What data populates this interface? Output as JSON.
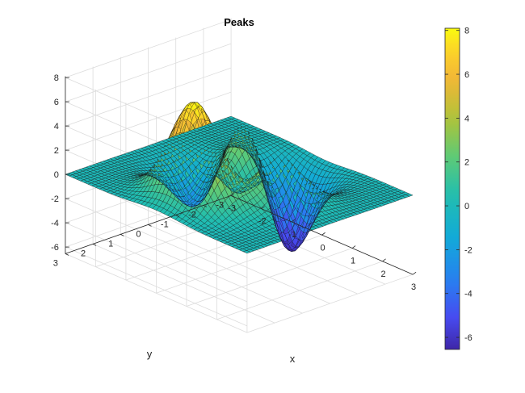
{
  "chart_data": {
    "type": "surface",
    "title": "Peaks",
    "xlabel": "x",
    "ylabel": "y",
    "zlabel": "",
    "function": "peaks",
    "x_range": [
      -3,
      3
    ],
    "y_range": [
      -3,
      3
    ],
    "z_range": [
      -6.55,
      8.1
    ],
    "x_ticks": [
      "-3",
      "-2",
      "-1",
      "0",
      "1",
      "2",
      "3"
    ],
    "y_ticks": [
      "-3",
      "-2",
      "-1",
      "0",
      "1",
      "2",
      "3"
    ],
    "z_ticks": [
      "-6",
      "-4",
      "-2",
      "0",
      "2",
      "4",
      "6",
      "8"
    ],
    "grid_points": 49,
    "z_min": -6.55,
    "z_max": 8.1,
    "grid": true,
    "colormap": "parula",
    "colorbar": {
      "position": "right",
      "ticks": [
        "-6",
        "-4",
        "-2",
        "0",
        "2",
        "4",
        "6",
        "8"
      ],
      "range": [
        -6.55,
        8.1
      ]
    }
  }
}
